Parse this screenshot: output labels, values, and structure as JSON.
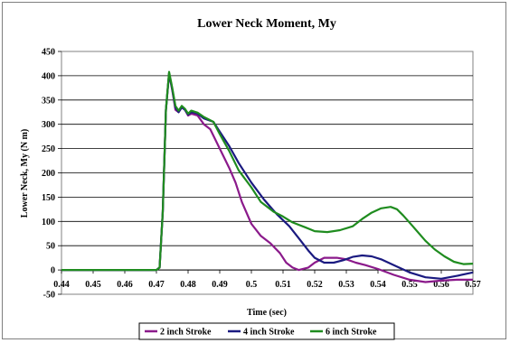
{
  "chart_data": {
    "type": "line",
    "title": "Lower Neck Moment, My",
    "xlabel": "Time (sec)",
    "ylabel": "Lower Neck, My (N m)",
    "xlim": [
      0.44,
      0.57
    ],
    "ylim": [
      -50,
      450
    ],
    "x_ticks": [
      "0.44",
      "0.45",
      "0.46",
      "0.47",
      "0.48",
      "0.49",
      "0.5",
      "0.51",
      "0.52",
      "0.53",
      "0.54",
      "0.55",
      "0.56",
      "0.57"
    ],
    "y_ticks": [
      "450",
      "400",
      "350",
      "300",
      "250",
      "200",
      "150",
      "100",
      "50",
      "0",
      "-50"
    ],
    "grid": "horizontal",
    "legend_position": "bottom",
    "series": [
      {
        "name": "2 inch Stroke",
        "color": "#8b1a8b",
        "points": [
          [
            0.44,
            0
          ],
          [
            0.47,
            0
          ],
          [
            0.471,
            5
          ],
          [
            0.472,
            120
          ],
          [
            0.473,
            330
          ],
          [
            0.474,
            405
          ],
          [
            0.475,
            370
          ],
          [
            0.476,
            330
          ],
          [
            0.477,
            325
          ],
          [
            0.478,
            335
          ],
          [
            0.479,
            330
          ],
          [
            0.48,
            318
          ],
          [
            0.481,
            322
          ],
          [
            0.482,
            320
          ],
          [
            0.483,
            318
          ],
          [
            0.485,
            300
          ],
          [
            0.487,
            290
          ],
          [
            0.49,
            250
          ],
          [
            0.493,
            210
          ],
          [
            0.495,
            180
          ],
          [
            0.497,
            140
          ],
          [
            0.5,
            95
          ],
          [
            0.503,
            70
          ],
          [
            0.506,
            55
          ],
          [
            0.509,
            35
          ],
          [
            0.511,
            15
          ],
          [
            0.513,
            5
          ],
          [
            0.515,
            0
          ],
          [
            0.518,
            5
          ],
          [
            0.52,
            15
          ],
          [
            0.523,
            25
          ],
          [
            0.527,
            25
          ],
          [
            0.53,
            22
          ],
          [
            0.533,
            15
          ],
          [
            0.536,
            10
          ],
          [
            0.54,
            2
          ],
          [
            0.545,
            -10
          ],
          [
            0.55,
            -20
          ],
          [
            0.555,
            -25
          ],
          [
            0.56,
            -22
          ],
          [
            0.565,
            -20
          ],
          [
            0.57,
            -20
          ]
        ]
      },
      {
        "name": "4 inch Stroke",
        "color": "#1a1a80",
        "points": [
          [
            0.44,
            0
          ],
          [
            0.47,
            0
          ],
          [
            0.471,
            5
          ],
          [
            0.472,
            120
          ],
          [
            0.473,
            330
          ],
          [
            0.474,
            405
          ],
          [
            0.475,
            372
          ],
          [
            0.476,
            335
          ],
          [
            0.477,
            325
          ],
          [
            0.478,
            335
          ],
          [
            0.479,
            330
          ],
          [
            0.48,
            320
          ],
          [
            0.481,
            325
          ],
          [
            0.482,
            324
          ],
          [
            0.483,
            322
          ],
          [
            0.485,
            312
          ],
          [
            0.488,
            305
          ],
          [
            0.49,
            285
          ],
          [
            0.493,
            255
          ],
          [
            0.496,
            220
          ],
          [
            0.5,
            180
          ],
          [
            0.504,
            145
          ],
          [
            0.508,
            115
          ],
          [
            0.512,
            90
          ],
          [
            0.515,
            65
          ],
          [
            0.518,
            40
          ],
          [
            0.52,
            25
          ],
          [
            0.523,
            15
          ],
          [
            0.526,
            15
          ],
          [
            0.529,
            20
          ],
          [
            0.532,
            27
          ],
          [
            0.535,
            30
          ],
          [
            0.538,
            28
          ],
          [
            0.541,
            22
          ],
          [
            0.545,
            10
          ],
          [
            0.55,
            -5
          ],
          [
            0.555,
            -15
          ],
          [
            0.56,
            -18
          ],
          [
            0.565,
            -12
          ],
          [
            0.57,
            -5
          ]
        ]
      },
      {
        "name": "6 inch Stroke",
        "color": "#1f8c1f",
        "points": [
          [
            0.44,
            0
          ],
          [
            0.47,
            0
          ],
          [
            0.471,
            5
          ],
          [
            0.472,
            120
          ],
          [
            0.473,
            330
          ],
          [
            0.474,
            408
          ],
          [
            0.475,
            375
          ],
          [
            0.476,
            338
          ],
          [
            0.477,
            328
          ],
          [
            0.478,
            338
          ],
          [
            0.479,
            332
          ],
          [
            0.48,
            322
          ],
          [
            0.481,
            328
          ],
          [
            0.482,
            326
          ],
          [
            0.483,
            324
          ],
          [
            0.485,
            315
          ],
          [
            0.488,
            305
          ],
          [
            0.49,
            280
          ],
          [
            0.493,
            245
          ],
          [
            0.496,
            205
          ],
          [
            0.5,
            170
          ],
          [
            0.503,
            140
          ],
          [
            0.507,
            120
          ],
          [
            0.51,
            110
          ],
          [
            0.513,
            98
          ],
          [
            0.517,
            88
          ],
          [
            0.52,
            80
          ],
          [
            0.524,
            78
          ],
          [
            0.528,
            82
          ],
          [
            0.532,
            90
          ],
          [
            0.535,
            105
          ],
          [
            0.538,
            118
          ],
          [
            0.541,
            127
          ],
          [
            0.544,
            130
          ],
          [
            0.546,
            125
          ],
          [
            0.548,
            112
          ],
          [
            0.551,
            90
          ],
          [
            0.555,
            60
          ],
          [
            0.558,
            42
          ],
          [
            0.561,
            28
          ],
          [
            0.564,
            17
          ],
          [
            0.567,
            12
          ],
          [
            0.57,
            13
          ]
        ]
      }
    ]
  }
}
